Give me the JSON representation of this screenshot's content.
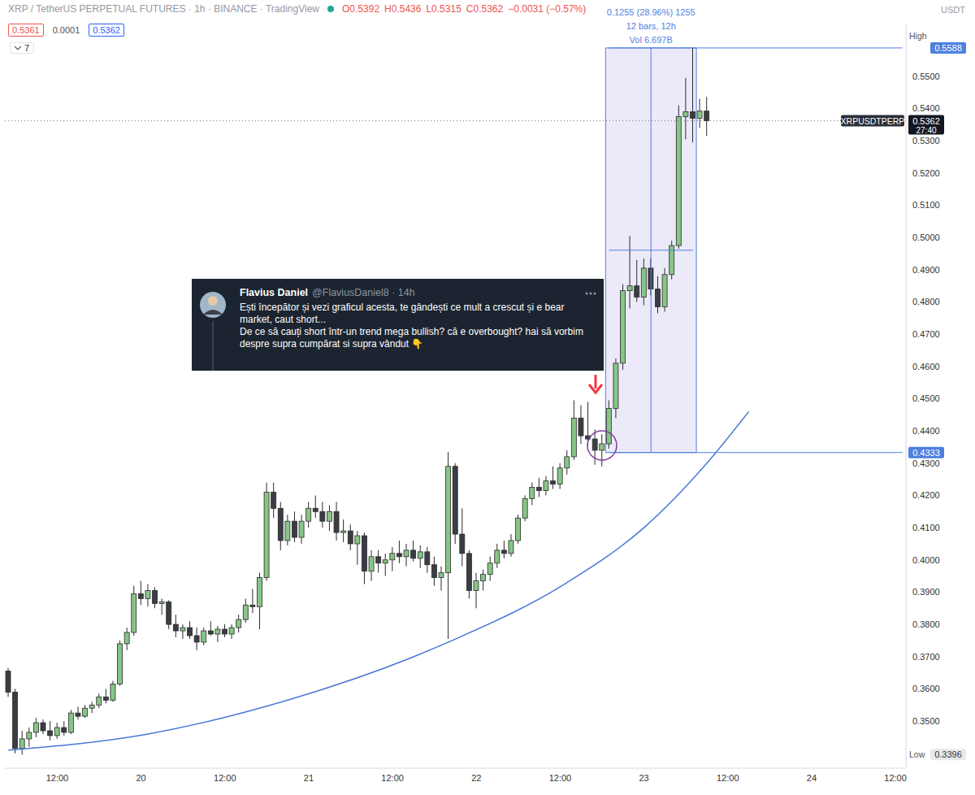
{
  "chart_data": {
    "type": "candlestick",
    "title": "XRP / TetherUS PERPETUAL FUTURES · 1h · BINANCE · TradingView",
    "header_values": [
      "O0.5392",
      "H0.5436",
      "L0.5315",
      "C0.5362",
      "−0.0031 (−0.57%)"
    ],
    "quote_boxes": [
      0.5361,
      0.0001,
      0.5362
    ],
    "interval_count": "7",
    "currency": "USDT",
    "grid": false,
    "categories": [
      null,
      null,
      null,
      null,
      null,
      null,
      null,
      "12:00",
      null,
      null,
      null,
      null,
      null,
      null,
      null,
      null,
      null,
      null,
      null,
      "20",
      null,
      null,
      null,
      null,
      null,
      null,
      null,
      null,
      null,
      null,
      null,
      "12:00",
      null,
      null,
      null,
      null,
      null,
      null,
      null,
      null,
      null,
      null,
      null,
      "21",
      null,
      null,
      null,
      null,
      null,
      null,
      null,
      null,
      null,
      null,
      null,
      "12:00",
      null,
      null,
      null,
      null,
      null,
      null,
      null,
      null,
      null,
      null,
      null,
      "22",
      null,
      null,
      null,
      null,
      null,
      null,
      null,
      null,
      null,
      null,
      null,
      "12:00",
      null,
      null,
      null,
      null,
      null,
      null,
      null,
      null,
      null,
      null,
      null,
      "23",
      null,
      null,
      null,
      null,
      null,
      null,
      null,
      null,
      null,
      null,
      null,
      "12:00",
      null,
      null,
      null,
      null,
      null,
      null,
      null,
      null,
      null,
      null,
      null,
      "24",
      null,
      null,
      null,
      null,
      null,
      null,
      null,
      null,
      null,
      null,
      null,
      "12:00",
      null
    ],
    "ylim": [
      0.3354,
      0.5661
    ],
    "yticks": [
      {
        "value": 0.35,
        "label": "0.3500"
      },
      {
        "value": 0.36,
        "label": "0.3600"
      },
      {
        "value": 0.37,
        "label": "0.3700"
      },
      {
        "value": 0.38,
        "label": "0.3800"
      },
      {
        "value": 0.39,
        "label": "0.3900"
      },
      {
        "value": 0.4,
        "label": "0.4000"
      },
      {
        "value": 0.41,
        "label": "0.4100"
      },
      {
        "value": 0.42,
        "label": "0.4200"
      },
      {
        "value": 0.43,
        "label": "0.4300"
      },
      {
        "value": 0.44,
        "label": "0.4400"
      },
      {
        "value": 0.45,
        "label": "0.4500"
      },
      {
        "value": 0.46,
        "label": "0.4600"
      },
      {
        "value": 0.47,
        "label": "0.4700"
      },
      {
        "value": 0.48,
        "label": "0.4800"
      },
      {
        "value": 0.49,
        "label": "0.4900"
      },
      {
        "value": 0.5,
        "label": "0.5000"
      },
      {
        "value": 0.51,
        "label": "0.5100"
      },
      {
        "value": 0.52,
        "label": "0.5200"
      },
      {
        "value": 0.53,
        "label": "0.5300"
      },
      {
        "value": 0.54,
        "label": "0.5400"
      },
      {
        "value": 0.55,
        "label": "0.5500"
      }
    ],
    "series": [
      {
        "name": "XRPUSDTPERP",
        "type": "candlestick",
        "open": [
          0.3655,
          0.359,
          0.3415,
          0.3445,
          0.3465,
          0.3495,
          0.347,
          0.3455,
          0.348,
          0.3465,
          0.3525,
          0.3515,
          0.354,
          0.355,
          0.3575,
          0.3565,
          0.3615,
          0.374,
          0.3775,
          0.3895,
          0.388,
          0.3905,
          0.3865,
          0.387,
          0.38,
          0.378,
          0.379,
          0.3765,
          0.3745,
          0.378,
          0.377,
          0.3785,
          0.377,
          0.379,
          0.3815,
          0.386,
          0.3855,
          0.3945,
          0.421,
          0.416,
          0.406,
          0.412,
          0.407,
          0.412,
          0.416,
          0.415,
          0.412,
          0.415,
          0.4085,
          0.409,
          0.405,
          0.4075,
          0.3965,
          0.401,
          0.399,
          0.4,
          0.402,
          0.401,
          0.403,
          0.4005,
          0.4025,
          0.3985,
          0.3945,
          0.396,
          0.429,
          0.408,
          0.402,
          0.3905,
          0.3935,
          0.3955,
          0.399,
          0.403,
          0.402,
          0.406,
          0.413,
          0.419,
          0.4225,
          0.4215,
          0.4245,
          0.4235,
          0.4285,
          0.432,
          0.444,
          0.4385,
          0.4375,
          0.434,
          0.436,
          0.447,
          0.461,
          0.4835,
          0.485,
          0.4815,
          0.4905,
          0.484,
          0.4785,
          0.4885,
          0.4975,
          0.5375,
          0.539,
          0.537,
          0.5392,
          null,
          null,
          null,
          null,
          null,
          null,
          null,
          null,
          null,
          null,
          null,
          null,
          null,
          null,
          null,
          null,
          null,
          null,
          null,
          null,
          null,
          null,
          null,
          null,
          null,
          null,
          null,
          null
        ],
        "high": [
          0.3665,
          0.36,
          0.347,
          0.348,
          0.351,
          0.3505,
          0.35,
          0.3495,
          0.35,
          0.3535,
          0.3545,
          0.355,
          0.356,
          0.3585,
          0.36,
          0.3625,
          0.375,
          0.379,
          0.392,
          0.3935,
          0.3925,
          0.3915,
          0.388,
          0.3875,
          0.383,
          0.38,
          0.381,
          0.379,
          0.379,
          0.381,
          0.3795,
          0.38,
          0.38,
          0.383,
          0.388,
          0.391,
          0.396,
          0.424,
          0.424,
          0.418,
          0.414,
          0.415,
          0.414,
          0.418,
          0.42,
          0.418,
          0.417,
          0.418,
          0.4125,
          0.411,
          0.409,
          0.4085,
          0.403,
          0.403,
          0.402,
          0.404,
          0.406,
          0.405,
          0.406,
          0.4045,
          0.404,
          0.401,
          0.398,
          0.4335,
          0.43,
          0.416,
          0.403,
          0.396,
          0.397,
          0.401,
          0.405,
          0.406,
          0.408,
          0.414,
          0.42,
          0.424,
          0.4255,
          0.426,
          0.429,
          0.43,
          0.434,
          0.4495,
          0.448,
          0.449,
          0.4405,
          0.439,
          0.4495,
          0.4625,
          0.4855,
          0.5005,
          0.493,
          0.4935,
          0.4935,
          0.488,
          0.4905,
          0.499,
          0.541,
          0.5495,
          0.5588,
          0.543,
          0.5436,
          null,
          null,
          null,
          null,
          null,
          null,
          null,
          null,
          null,
          null,
          null,
          null,
          null,
          null,
          null,
          null,
          null,
          null,
          null,
          null,
          null,
          null,
          null,
          null,
          null,
          null,
          null,
          null
        ],
        "low": [
          0.3575,
          0.34,
          0.3396,
          0.342,
          0.345,
          0.346,
          0.344,
          0.3445,
          0.3455,
          0.346,
          0.3505,
          0.351,
          0.3525,
          0.354,
          0.3555,
          0.356,
          0.361,
          0.372,
          0.3765,
          0.386,
          0.3855,
          0.385,
          0.383,
          0.3785,
          0.376,
          0.3755,
          0.3755,
          0.372,
          0.3735,
          0.3765,
          0.3745,
          0.376,
          0.3755,
          0.3775,
          0.3805,
          0.3835,
          0.3785,
          0.3935,
          0.413,
          0.403,
          0.4045,
          0.4055,
          0.405,
          0.41,
          0.413,
          0.41,
          0.409,
          0.406,
          0.4055,
          0.403,
          0.3985,
          0.3925,
          0.3935,
          0.396,
          0.395,
          0.3965,
          0.399,
          0.398,
          0.3995,
          0.3975,
          0.396,
          0.392,
          0.3905,
          0.3755,
          0.405,
          0.398,
          0.388,
          0.385,
          0.3905,
          0.3935,
          0.3975,
          0.4005,
          0.401,
          0.405,
          0.412,
          0.417,
          0.4195,
          0.42,
          0.422,
          0.422,
          0.4265,
          0.431,
          0.436,
          0.4355,
          0.4295,
          0.429,
          0.4345,
          0.444,
          0.459,
          0.478,
          0.48,
          0.479,
          0.482,
          0.4765,
          0.477,
          0.487,
          0.4965,
          0.5305,
          0.5295,
          0.534,
          0.5315,
          null,
          null,
          null,
          null,
          null,
          null,
          null,
          null,
          null,
          null,
          null,
          null,
          null,
          null,
          null,
          null,
          null,
          null,
          null,
          null,
          null,
          null,
          null,
          null,
          null,
          null,
          null,
          null
        ],
        "close": [
          0.359,
          0.3415,
          0.3445,
          0.3465,
          0.3495,
          0.347,
          0.3455,
          0.348,
          0.3465,
          0.3525,
          0.3515,
          0.354,
          0.355,
          0.3575,
          0.3565,
          0.3615,
          0.374,
          0.3775,
          0.3895,
          0.388,
          0.3905,
          0.3865,
          0.387,
          0.38,
          0.378,
          0.379,
          0.3765,
          0.3745,
          0.378,
          0.377,
          0.3785,
          0.377,
          0.379,
          0.3815,
          0.386,
          0.3855,
          0.3945,
          0.421,
          0.416,
          0.406,
          0.412,
          0.407,
          0.412,
          0.416,
          0.415,
          0.412,
          0.415,
          0.4085,
          0.409,
          0.405,
          0.4075,
          0.3965,
          0.401,
          0.399,
          0.4,
          0.402,
          0.401,
          0.403,
          0.4005,
          0.4025,
          0.3985,
          0.3945,
          0.396,
          0.429,
          0.408,
          0.402,
          0.3905,
          0.3935,
          0.3955,
          0.399,
          0.403,
          0.402,
          0.406,
          0.413,
          0.419,
          0.4225,
          0.4215,
          0.4245,
          0.4235,
          0.4285,
          0.432,
          0.444,
          0.4385,
          0.4375,
          0.434,
          0.436,
          0.447,
          0.461,
          0.4835,
          0.485,
          0.4815,
          0.4905,
          0.484,
          0.4785,
          0.4885,
          0.4975,
          0.5375,
          0.539,
          0.537,
          0.5392,
          0.5362,
          null,
          null,
          null,
          null,
          null,
          null,
          null,
          null,
          null,
          null,
          null,
          null,
          null,
          null,
          null,
          null,
          null,
          null,
          null,
          null,
          null,
          null,
          null,
          null,
          null,
          null,
          null,
          null
        ]
      },
      {
        "type": "line",
        "color": "#4a78d6",
        "values": [
          0.341,
          null,
          null,
          null,
          null,
          null,
          null,
          null,
          null,
          null,
          null,
          null,
          null,
          null,
          null,
          null,
          null,
          null,
          null,
          null,
          0.346,
          null,
          null,
          null,
          null,
          null,
          null,
          null,
          null,
          null,
          null,
          null,
          null,
          null,
          null,
          null,
          null,
          null,
          null,
          null,
          0.3565,
          null,
          null,
          null,
          null,
          null,
          null,
          null,
          null,
          null,
          null,
          null,
          null,
          null,
          null,
          null,
          null,
          null,
          null,
          null,
          null,
          null,
          null,
          0.3745,
          null,
          null,
          null,
          null,
          null,
          null,
          null,
          null,
          null,
          null,
          null,
          null,
          null,
          null,
          null,
          null,
          0.393,
          null,
          null,
          null,
          null,
          null,
          null,
          null,
          null,
          null,
          null,
          0.41,
          null,
          null,
          null,
          null,
          null,
          null,
          null,
          null,
          0.43,
          null,
          null,
          null,
          null,
          null,
          0.446,
          null,
          null,
          null,
          null,
          null,
          null,
          null,
          null,
          null,
          null,
          null,
          null,
          null,
          null,
          null,
          null,
          null,
          null,
          null,
          null,
          null,
          null
        ]
      }
    ],
    "last_price": {
      "value": 0.5362,
      "countdown": "27:40"
    },
    "measure": {
      "range": [
        0.4333,
        0.5588
      ],
      "start_index": 86,
      "end_index": 98,
      "texts": [
        "0.1255 (28.96%) 1255",
        "12 bars, 12h",
        "Vol 6.697B"
      ]
    },
    "high_label": {
      "label": "High",
      "value": 0.5588
    },
    "low_label": {
      "label": "Low",
      "value": 0.3396
    },
    "annotations": {
      "tweet": {
        "name": "Flavius Daniel",
        "meta": "@FlaviusDaniel8 · 14h",
        "paragraphs": [
          "Ești începător și vezi graficul acesta, te gândești ce mult a crescut și e bear market, caut short...",
          "De ce să cauți short într-un trend mega bullish? că e overbought? hai să vorbim despre supra cumpărat si supra vândut 👇"
        ]
      }
    }
  }
}
